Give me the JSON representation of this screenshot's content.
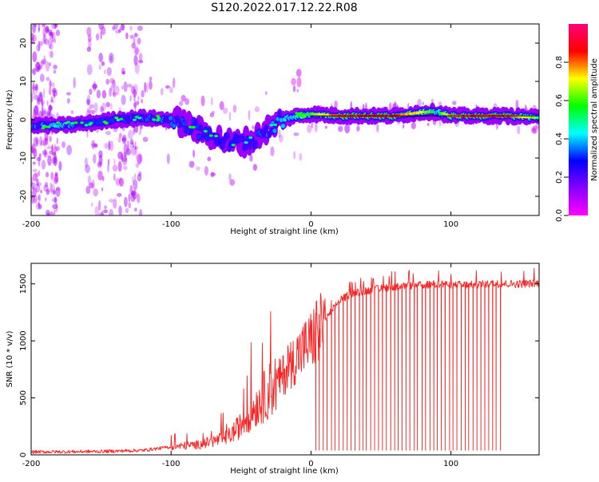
{
  "title": "S120.2022.017.12.22.R08",
  "chart_data": [
    {
      "type": "heatmap",
      "xlabel": "Height of straight line (km)",
      "ylabel": "Frequency (Hz)",
      "xlim": [
        -200,
        163
      ],
      "ylim": [
        -25,
        25
      ],
      "xticks": [
        -200,
        -100,
        0,
        100
      ],
      "yticks": [
        -20,
        -10,
        0,
        10,
        20
      ],
      "colorbar": {
        "label": "Normalized spectral amplitude",
        "range": [
          0,
          1
        ],
        "ticks": [
          0.0,
          0.2,
          0.4,
          0.6,
          0.8
        ],
        "colors": [
          "#ff00ff",
          "#8800ff",
          "#0000ff",
          "#00ffff",
          "#00ff00",
          "#ffff00",
          "#ff0000",
          "#ff0077"
        ]
      },
      "ridge": {
        "x": [
          -200,
          -180,
          -160,
          -140,
          -120,
          -100,
          -90,
          -80,
          -70,
          -60,
          -50,
          -40,
          -30,
          -20,
          -10,
          0,
          20,
          40,
          60,
          80,
          90,
          100,
          120,
          140,
          163
        ],
        "y": [
          -1.5,
          -1.5,
          -1,
          0,
          0.5,
          0,
          -1,
          -3,
          -4,
          -6,
          -6,
          -5,
          -2,
          0,
          1,
          1.5,
          1,
          1,
          1,
          2,
          2,
          1,
          1,
          1,
          0.5
        ],
        "amplitude": [
          0.4,
          0.55,
          0.3,
          0.3,
          0.35,
          0.4,
          0.3,
          0.3,
          0.25,
          0.25,
          0.25,
          0.3,
          0.4,
          0.5,
          0.55,
          0.6,
          0.85,
          0.85,
          0.85,
          0.7,
          0.5,
          0.8,
          0.85,
          0.85,
          0.6
        ]
      }
    },
    {
      "type": "line",
      "xlabel": "Height of straight line (km)",
      "ylabel": "SNR (10 * v/v)",
      "xlim": [
        -200,
        163
      ],
      "ylim": [
        0,
        1680
      ],
      "xticks": [
        -200,
        -100,
        0,
        100
      ],
      "yticks": [
        0,
        500,
        1000,
        1500
      ],
      "color": "#ff2020",
      "envelope": {
        "x": [
          -200,
          -150,
          -120,
          -110,
          -100,
          -80,
          -60,
          -50,
          -40,
          -30,
          -20,
          -10,
          0,
          10,
          20,
          30,
          50,
          70,
          90,
          110,
          130,
          150,
          163
        ],
        "y": [
          25,
          30,
          40,
          55,
          70,
          90,
          150,
          260,
          420,
          560,
          700,
          870,
          1000,
          1180,
          1350,
          1420,
          1460,
          1480,
          1500,
          1490,
          1500,
          1500,
          1505
        ]
      },
      "dropouts": {
        "x_start": 3,
        "x_end": 135,
        "count": 48,
        "floor": 40
      }
    }
  ]
}
